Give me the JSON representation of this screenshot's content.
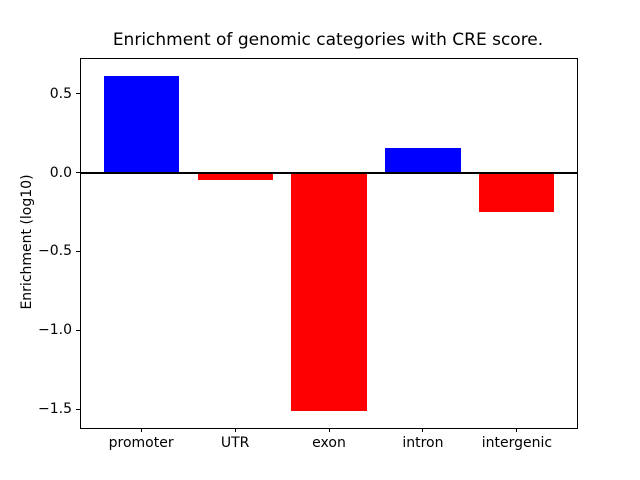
{
  "figure": {
    "background": "#ffffff",
    "axis_color": "#000000"
  },
  "chart_data": {
    "type": "bar",
    "title": "Enrichment of genomic categories with CRE score.",
    "xlabel": "",
    "ylabel": "Enrichment (log10)",
    "categories": [
      "promoter",
      "UTR",
      "exon",
      "intron",
      "intergenic"
    ],
    "values": [
      0.615,
      -0.05,
      -1.51,
      0.155,
      -0.25
    ],
    "bar_colors": [
      "#0000ff",
      "#ff0000",
      "#ff0000",
      "#0000ff",
      "#ff0000"
    ],
    "positive_color": "#0000ff",
    "negative_color": "#ff0000",
    "bar_width": 0.8,
    "yticks": [
      0.5,
      0.0,
      -0.5,
      -1.0,
      -1.5
    ],
    "ytick_labels": [
      "0.5",
      "0.0",
      "−0.5",
      "−1.0",
      "−1.5"
    ],
    "ylim": [
      -1.62,
      0.72
    ],
    "xlim": [
      -0.64,
      4.64
    ],
    "zero_line": true,
    "zero_line_color": "#000000",
    "zero_line_width": 2,
    "grid": false,
    "legend": null
  }
}
